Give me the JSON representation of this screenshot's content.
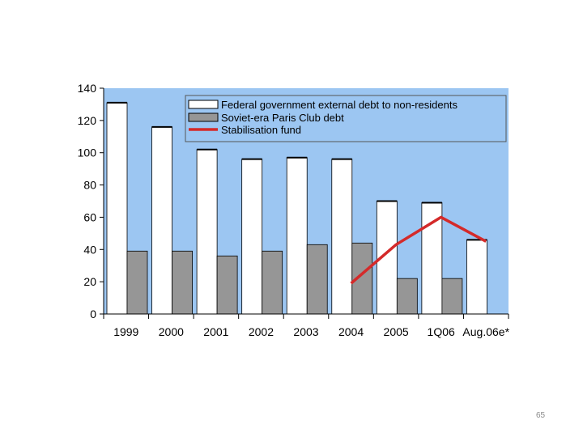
{
  "slide": {
    "page_number": "65"
  },
  "colors": {
    "plot_background": "#9cc6f2",
    "federal_bar": "#ffffff",
    "paris_bar": "#969696",
    "stabilisation_line": "#d42a2a"
  },
  "chart_data": {
    "type": "bar",
    "categories": [
      "1999",
      "2000",
      "2001",
      "2002",
      "2003",
      "2004",
      "2005",
      "1Q06",
      "Aug.06e*"
    ],
    "ylim": [
      0,
      140
    ],
    "yticks": [
      "0",
      "20",
      "40",
      "60",
      "80",
      "100",
      "120",
      "140"
    ],
    "grid": false,
    "legend_position": "top-right",
    "series": [
      {
        "name": "Federal government external debt to non-residents",
        "kind": "bar",
        "values": [
          131,
          116,
          102,
          96,
          97,
          96,
          70,
          69,
          46
        ]
      },
      {
        "name": "Soviet-era Paris Club debt",
        "kind": "bar",
        "values": [
          39,
          39,
          36,
          39,
          43,
          44,
          22,
          22,
          null
        ]
      },
      {
        "name": "Stabilisation fund",
        "kind": "line",
        "values": [
          null,
          null,
          null,
          null,
          null,
          19,
          43,
          60,
          45
        ]
      }
    ]
  }
}
